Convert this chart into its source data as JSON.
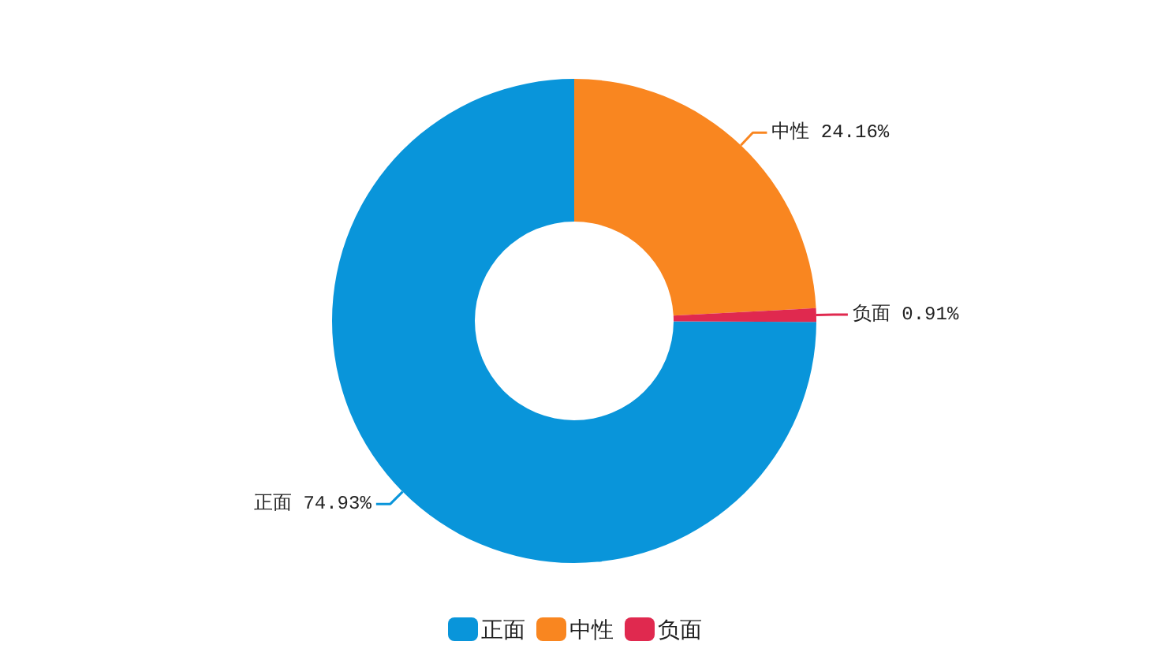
{
  "chart_data": {
    "type": "donut",
    "categories": [
      "正面",
      "中性",
      "负面"
    ],
    "values": [
      74.93,
      24.16,
      0.91
    ],
    "colors": [
      "#0995da",
      "#f98620",
      "#e0294f"
    ],
    "value_labels": [
      "正面 74.93%",
      "中性 24.16%",
      "负面 0.91%"
    ],
    "legend": "bottom"
  }
}
